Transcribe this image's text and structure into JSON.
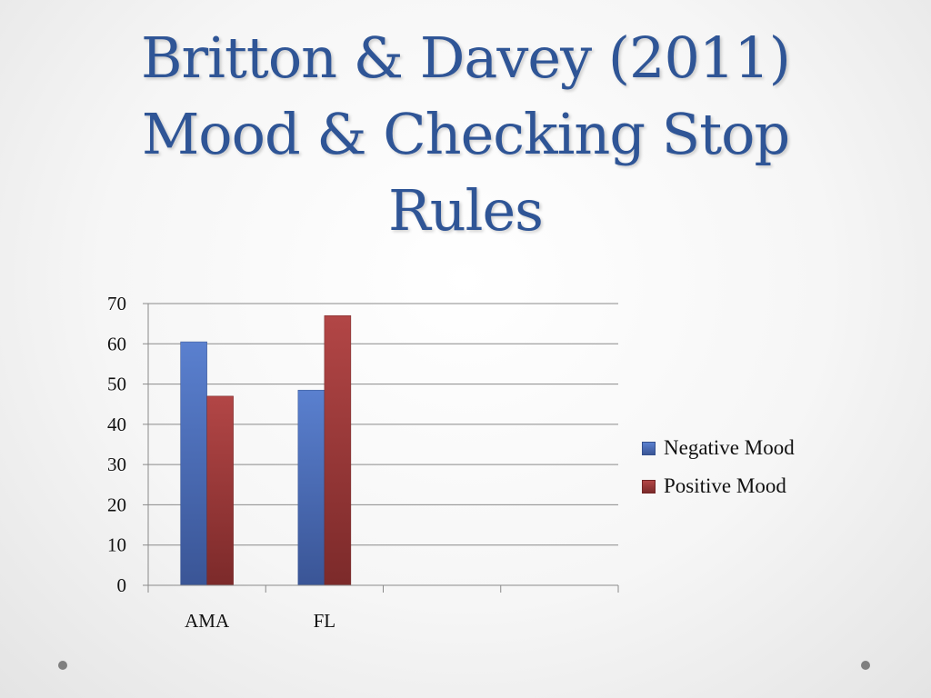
{
  "slide": {
    "title_lines": [
      "Britton & Davey (2011)",
      "Mood & Checking Stop",
      "Rules"
    ]
  },
  "colors": {
    "title": "#2f5596",
    "negative_mood": "#4a6fbd",
    "positive_mood": "#a03a3a",
    "grid": "#8a8a8a"
  },
  "chart_data": {
    "type": "bar",
    "title": "",
    "xlabel": "",
    "ylabel": "",
    "categories": [
      "AMA",
      "FL",
      "",
      ""
    ],
    "series": [
      {
        "name": "Negative Mood",
        "values": [
          60.5,
          48.5,
          null,
          null
        ],
        "color": "#4a6fbd"
      },
      {
        "name": "Positive Mood",
        "values": [
          47,
          67,
          null,
          null
        ],
        "color": "#a03a3a"
      }
    ],
    "ylim": [
      0,
      70
    ],
    "yticks": [
      "0",
      "10",
      "20",
      "30",
      "40",
      "50",
      "60",
      "70"
    ],
    "grid": true,
    "legend_position": "right"
  }
}
